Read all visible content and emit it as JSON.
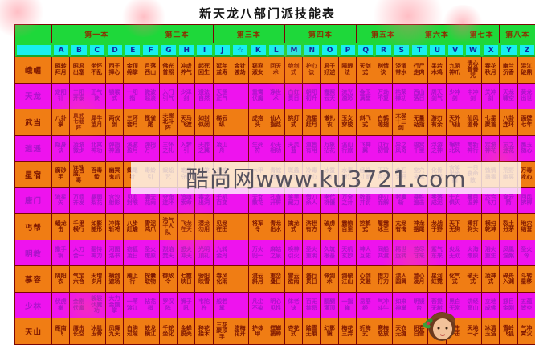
{
  "title": "新天龙八部门派技能表",
  "watermark": {
    "text": "酷尚网www.ku3721.com"
  },
  "colors": {
    "header_green": "#1ed83a",
    "letter_cyan": "#17efef",
    "row_orange": "#f07d14",
    "row_magenta": "#ee13ee",
    "grid_border": "#7a0505"
  },
  "table": {
    "book_headers": [
      {
        "label": "第一本",
        "span": 5
      },
      {
        "label": "第二本",
        "span": 4
      },
      {
        "label": "第三本",
        "span": 4
      },
      {
        "label": "第四本",
        "span": 4
      },
      {
        "label": "第五本",
        "span": 3
      },
      {
        "label": "第六本",
        "span": 3
      },
      {
        "label": "第七本",
        "span": 2
      },
      {
        "label": "第八本",
        "span": 2
      }
    ],
    "letter_headers": [
      "A",
      "B",
      "C",
      "D",
      "E",
      "F",
      "G",
      "H",
      "I",
      "J",
      "☆",
      "K",
      "L",
      "M",
      "N",
      "O",
      "P",
      "Q",
      "R",
      "S",
      "T",
      "U",
      "V",
      "W",
      "X",
      "Y",
      "Z"
    ],
    "rows": [
      {
        "sect": "峨嵋",
        "skills": [
          "昭转拜月",
          "昭君出塞",
          "坐怀不乱",
          "西子捧心",
          "金顶绵掌",
          "月落西山",
          "佛光普照",
          "冲虚养气",
          "起死回生",
          "延年益寿",
          "金针渡劫",
          "窈窕淑女",
          "回天术",
          "绝剑式",
          "护心诀",
          "君子好逑",
          "障眼法",
          "天剑式",
          "别情诀",
          "泾渭带水",
          "行尸走肉",
          "呆若木鸡",
          "九阴神爪",
          "清心普善咒",
          "春花秋月",
          "幽兰沉香",
          "混江破鼎"
        ]
      },
      {
        "sect": "天龙",
        "skills": [
          "定阳针",
          "三阳开泰",
          "正气诀",
          "锁喉式",
          "一阳指",
          "微波起浪",
          "入门引气",
          "少泽剑",
          "道法自然",
          "天罡正气",
          "",
          "重霄伏魔",
          "净世术",
          "白虹贯日",
          "朝阳初升",
          "霞照云天",
          "流光溢彩",
          "金玉满堂",
          "万劫不复",
          "枯荣禅功",
          "西山落日",
          "周天剑气",
          "少冲剑",
          "中冲剑",
          "关冲剑",
          "天龙啸空",
          "黄龙出世"
        ]
      },
      {
        "sect": "武当",
        "skills": [
          "八卦掌",
          "真武七截阵",
          "犀牛望月",
          "两仪剑",
          "三环套月",
          "揽雀尾",
          "天罡北斗阵",
          "天马飞渡",
          "如封似闭",
          "梯云纵",
          "",
          "虎抱头",
          "仙人指路",
          "挑灯式",
          "流星赶月",
          "懒扎衣",
          "玉女穿梭",
          "斜飞式",
          "白鹤晾翅",
          "太极十三剑",
          "无量劫指",
          "游刃有余",
          "天外飞仙",
          "仙风道骨",
          "七星聚首",
          "八卦连环",
          "面壁七年"
        ]
      },
      {
        "sect": "逍遥",
        "skills": [
          "隐身诀",
          "凌波微步",
          "北冥神功",
          "弹指神通",
          "溪波盈月",
          "弹指万千",
          "三怀之礼",
          "入梦引",
          "天葬之翼",
          "凌山舟",
          "",
          "生死符",
          "小无相功",
          "天灵蓝",
          "道皆有用",
          "万象拈花",
          "溪山行旅",
          "飞神翼",
          "江行初雪",
          "异之风奇",
          "碧窝千里",
          "浮游之神",
          "辗转北风",
          "笔新神行",
          "定波神花",
          "忘之迷花",
          "墨玉随心"
        ]
      },
      {
        "sect": "星宿",
        "skills": [
          "腐砂手",
          "连珠腐尸毒",
          "百毒蛰",
          "幽冥鬼爪",
          "蝎尾针",
          "毒蛉引",
          "蜈蚣咒",
          "笔星夺魄",
          "谈笑风生",
          "含笑饮砒",
          "",
          "木甲术",
          "青蛇缠身",
          "斑蟊咒",
          "冷毒侵心",
          "冰蚕蛊",
          "水毒漫江",
          "经脉寸断",
          "玉碎昆冈",
          "金石为开",
          "空穴来风",
          "化骨绵掌",
          "含笑半步癫",
          "一日丧命散",
          "蚀情蛊毒",
          "荒野幽冥",
          "万毒攻心"
        ]
      },
      {
        "sect": "唐门",
        "skills": [
          "流星矢",
          "万箭齐发",
          "暴雨梨花",
          "含沙射影",
          "见血封喉",
          "满天花雨",
          "夺命连环",
          "追魂索命",
          "毒龙出洞",
          "千机百变",
          "",
          "天女散花",
          "孔雀开屏",
          "笑里藏刀",
          "借刀杀人",
          "李代桃僵",
          "万全之计",
          "数罪并罚",
          "迎刃而解",
          "封魔斩",
          "乘胜追击",
          "零落成泥",
          "十方俱灭",
          "藏目温养",
          "六合飞刀",
          "穿云箭",
          "回风拂柳"
        ]
      },
      {
        "sect": "丐帮",
        "skills": [
          "蟠龙击",
          "千里横行",
          "如影随形",
          "冲阵斩将",
          "八步赶蟾",
          "雪泥鸿爪",
          "浩气千人队",
          "飞龙在天",
          "潜龙勿用",
          "见龙在田",
          "",
          "将军令",
          "青龙出水",
          "擒龙式",
          "济世有方",
          "破虏令",
          "震惊百里",
          "控鹤式",
          "履霜冰至",
          "亢龙有悔",
          "神龙摆尾",
          "龙战于野",
          "天下无狗",
          "棒打狗头",
          "横扫乾坤",
          "裂土分茅",
          "地穴结营"
        ]
      },
      {
        "sect": "明教",
        "skills": [
          "撒手锏",
          "人刀合一",
          "翻恃神力",
          "河图洛书",
          "窃狐凌日",
          "圣火燎原",
          "烈焰焚天",
          "怒火冲天",
          "光明顶礼",
          "九转金丹",
          "",
          "万火归一",
          "麻姑之泉",
          "唤神引火",
          "圣火重明",
          "久筑根基",
          "天机玄妙",
          "神人互佑",
          "同船共渡",
          "稀世运转",
          "苦尽甘来",
          "紫气东来",
          "炎龙无双",
          "火海燎原",
          "浴火重生",
          "凤凰涅槃",
          "圣火令"
        ]
      },
      {
        "sect": "慕容",
        "skills": [
          "阴阳衣",
          "气定六合",
          "天增岁月",
          "横剑遮场",
          "雁上行",
          "探囊取物",
          "御敌令",
          "七霞映日",
          "骄阳映雪",
          "春风化雨",
          "",
          "流云斜月",
          "重峦叠日",
          "雷云欲雨",
          "溅行贯日",
          "佩剑术",
          "剑破江山",
          "心剑交融",
          "借力打力",
          "漂人圆舞",
          "慧心凌月",
          "星河虹霓",
          "化气式",
          "破天式",
          "凌神式",
          "碎舟入渊",
          "斗转星移"
        ]
      },
      {
        "sect": "少林",
        "skills": [
          "伏虎拳",
          "金刚伏魔",
          "袈裟伏魔功",
          "大力金刚掌",
          "一苇渡江",
          "拈花指",
          "罗汉阵",
          "狮子吼",
          "韦陀杵",
          "般若掌",
          "",
          "凡尘不染",
          "明心见性",
          "体老诀",
          "百无禁忌",
          "醍醐灌顶",
          "一指禅",
          "易筋经",
          "气冲斗牛",
          "如来神掌",
          "明镜台",
          "菩提无树",
          "黑白无常",
          "讲经高山",
          "立地成佛",
          "怒目金刚",
          "五蕴皆空"
        ]
      },
      {
        "sect": "天山",
        "skills": [
          "雁南飞",
          "鹰击长空",
          "冰肌玉骨",
          "凤舞九天",
          "白驹过隙",
          "蛟龙横江",
          "千蛇坐化",
          "金蝉脱壳",
          "移花接木",
          "三花聚顶手",
          "腊梅花开",
          "护体甲",
          "螳螂捕蝉",
          "杏花式",
          "踏雪无痕",
          "幻影镜",
          "梅花三弄",
          "折梅式",
          "寒梅怒放",
          "天衣无缝",
          "阳春白雪",
          "织女三现",
          "回生一击",
          "天地一孑",
          "冰清玉洁",
          "雪岭飞狐",
          "气冲霄汉"
        ]
      }
    ]
  }
}
